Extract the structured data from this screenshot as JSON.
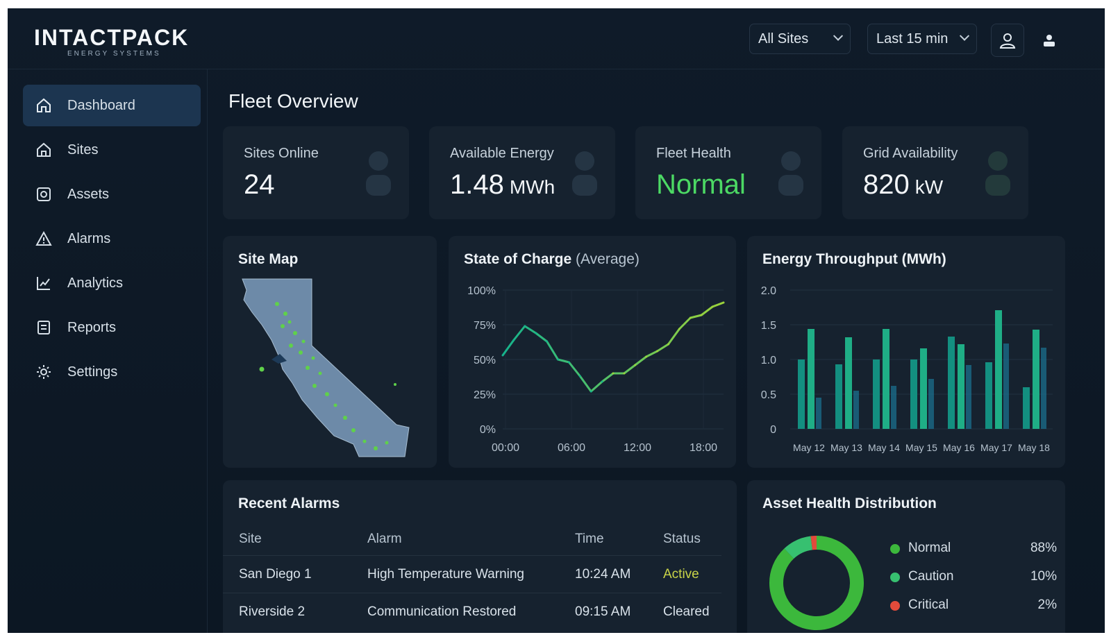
{
  "brand": {
    "name": "INTACTPACK",
    "tagline": "ENERGY SYSTEMS"
  },
  "header": {
    "site_filter": "All Sites",
    "time_filter": "Last 15 min",
    "icons": [
      "user-circle-icon",
      "user-icon"
    ]
  },
  "sidebar": {
    "items": [
      {
        "label": "Dashboard",
        "icon": "home-icon",
        "active": true
      },
      {
        "label": "Sites",
        "icon": "home-icon",
        "active": false
      },
      {
        "label": "Assets",
        "icon": "assets-icon",
        "active": false
      },
      {
        "label": "Alarms",
        "icon": "warning-icon",
        "active": false
      },
      {
        "label": "Analytics",
        "icon": "chart-icon",
        "active": false
      },
      {
        "label": "Reports",
        "icon": "report-icon",
        "active": false
      },
      {
        "label": "Settings",
        "icon": "gear-icon",
        "active": false
      }
    ]
  },
  "main": {
    "title": "Fleet Overview",
    "kpis": [
      {
        "label": "Sites Online",
        "value": "24",
        "unit": "",
        "color": "#f3f6f9"
      },
      {
        "label": "Available Energy",
        "value": "1.48",
        "unit": "MWh",
        "color": "#f3f6f9"
      },
      {
        "label": "Fleet Health",
        "value": "Normal",
        "unit": "",
        "color": "#4cd964"
      },
      {
        "label": "Grid Availability",
        "value": "820",
        "unit": "kW",
        "color": "#f3f6f9"
      }
    ],
    "site_map": {
      "title": "Site Map"
    },
    "soc": {
      "title": "State of Charge",
      "title_sub": "(Average)"
    },
    "throughput": {
      "title": "Energy Throughput (MWh)"
    },
    "alarms": {
      "title": "Recent Alarms",
      "columns": [
        "Site",
        "Alarm",
        "Time",
        "Status"
      ],
      "rows": [
        {
          "site": "San Diego 1",
          "alarm": "High Temperature Warning",
          "time": "10:24 AM",
          "status": "Active",
          "status_color": "#c9d448"
        },
        {
          "site": "Riverside 2",
          "alarm": "Communication Restored",
          "time": "09:15 AM",
          "status": "Cleared",
          "status_color": "#d9e2ea"
        }
      ]
    },
    "asset_health": {
      "title": "Asset Health Distribution"
    }
  },
  "chart_data": [
    {
      "type": "line",
      "title": "State of Charge (Average)",
      "x_ticks": [
        "00:00",
        "06:00",
        "12:00",
        "18:00"
      ],
      "y_ticks": [
        "100%",
        "75%",
        "50%",
        "25%",
        "0%"
      ],
      "ylim": [
        0,
        100
      ],
      "xlim": [
        0,
        20
      ],
      "x": [
        0,
        1,
        2,
        3,
        4,
        5,
        6,
        7,
        8,
        9,
        10,
        11,
        12,
        13,
        14,
        15,
        16,
        17,
        18,
        19,
        20
      ],
      "values": [
        53,
        64,
        74,
        69,
        63,
        50,
        48,
        38,
        27,
        34,
        40,
        40,
        46,
        52,
        56,
        61,
        72,
        80,
        82,
        88,
        91
      ],
      "colors": [
        "#16b38c",
        "#9bd23b"
      ]
    },
    {
      "type": "bar",
      "title": "Energy Throughput (MWh)",
      "categories": [
        "May 12",
        "May 13",
        "May 14",
        "May 15",
        "May 16",
        "May 17",
        "May 18"
      ],
      "y_ticks": [
        "2.0",
        "1.5",
        "1.0",
        "0.5",
        "0"
      ],
      "ylim": [
        0,
        2.0
      ],
      "series": [
        {
          "values": [
            1.0,
            0.93,
            1.0,
            1.0,
            1.33,
            0.96,
            0.6
          ]
        },
        {
          "values": [
            1.44,
            1.32,
            1.44,
            1.16,
            1.22,
            1.71,
            1.43
          ]
        },
        {
          "values": [
            0.45,
            0.55,
            0.62,
            0.72,
            0.92,
            1.23,
            1.17
          ]
        }
      ],
      "colors": [
        "#138f80",
        "#1fae86",
        "#1b6f8e"
      ]
    },
    {
      "type": "pie",
      "title": "Asset Health Distribution",
      "labels": [
        "Normal",
        "Caution",
        "Critical"
      ],
      "values": [
        88,
        10,
        2
      ],
      "display": [
        "88%",
        "10%",
        "2%"
      ],
      "colors": [
        "#3cb83c",
        "#37c070",
        "#e24b3b"
      ]
    }
  ]
}
